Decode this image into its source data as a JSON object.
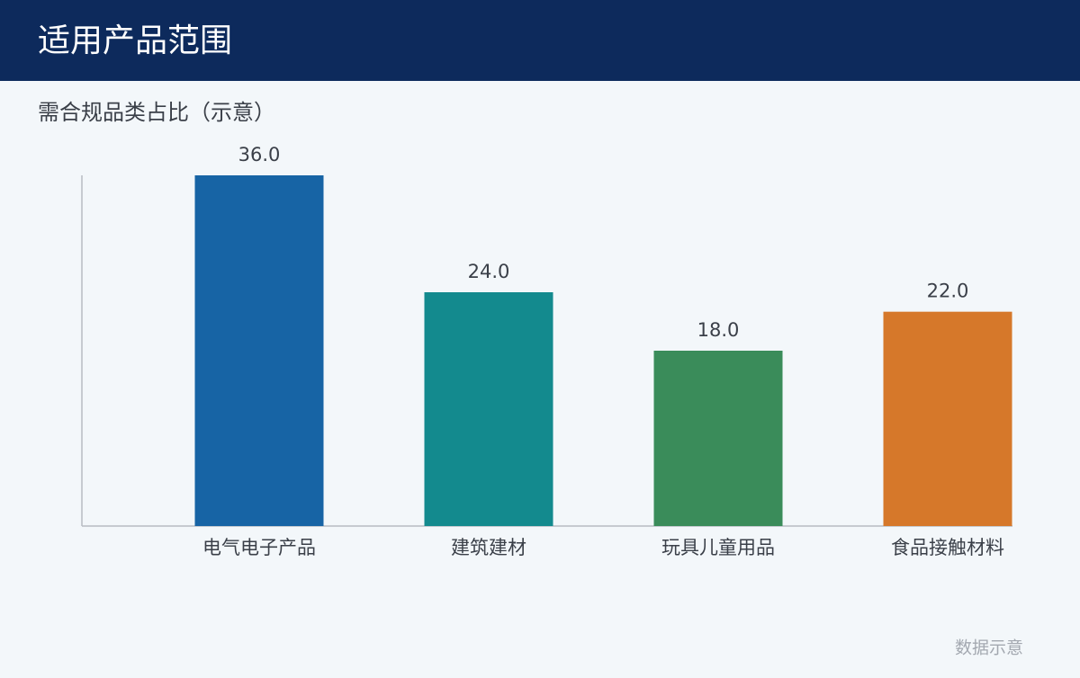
{
  "header": {
    "title": "适用产品范围"
  },
  "chart_data": {
    "type": "bar",
    "title": "需合规品类占比（示意）",
    "categories": [
      "电气电子产品",
      "建筑建材",
      "玩具儿童用品",
      "食品接触材料"
    ],
    "values": [
      36,
      24,
      18,
      22
    ],
    "value_labels": [
      "36.0",
      "24.0",
      "18.0",
      "22.0"
    ],
    "colors": [
      "#1764a5",
      "#138a8e",
      "#3a8c5a",
      "#d6782a"
    ],
    "ylim": [
      0,
      36
    ],
    "grid": false
  },
  "footer": {
    "note": "数据示意"
  }
}
